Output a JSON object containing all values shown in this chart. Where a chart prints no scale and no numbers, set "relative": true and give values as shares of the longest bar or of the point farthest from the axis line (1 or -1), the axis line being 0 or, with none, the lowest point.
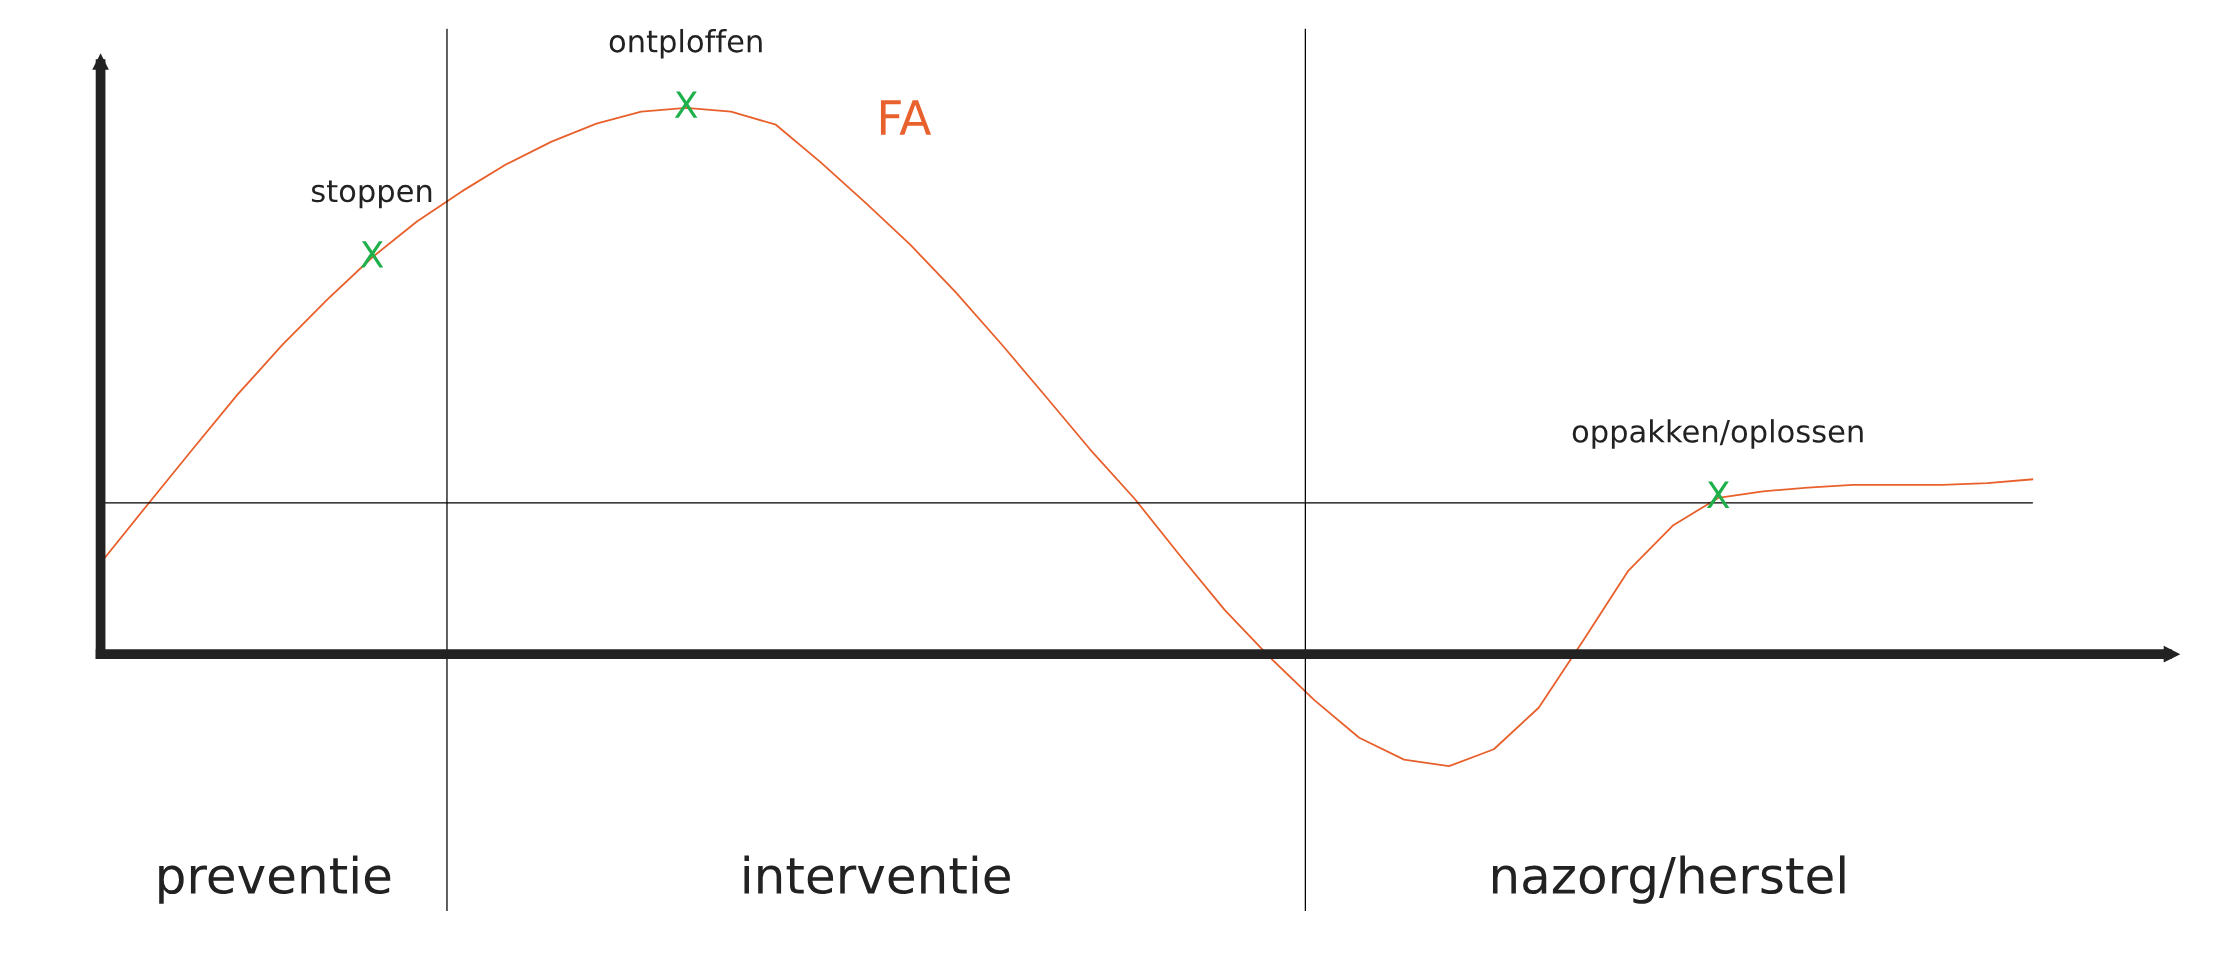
{
  "chart_data": {
    "type": "line",
    "relative": true,
    "tick_labels": false,
    "categories": [
      null,
      null,
      null,
      null,
      null,
      null,
      null,
      null,
      null,
      null,
      null,
      null,
      null,
      null,
      null,
      null,
      null,
      null,
      null,
      null,
      null,
      null,
      null,
      null,
      null,
      null,
      null,
      null,
      null,
      null,
      null,
      null,
      null,
      null,
      null,
      null,
      null,
      null,
      null,
      null,
      null,
      null,
      null,
      null
    ],
    "series": [
      {
        "name": "FA",
        "color": "#e8602c",
        "values": [
          0.172,
          0.274,
          0.375,
          0.475,
          0.566,
          0.649,
          0.726,
          0.792,
          0.847,
          0.897,
          0.938,
          0.971,
          0.993,
          1.0,
          0.993,
          0.969,
          0.9,
          0.826,
          0.749,
          0.663,
          0.57,
          0.473,
          0.375,
          0.284,
          0.181,
          0.081,
          -0.005,
          -0.084,
          -0.153,
          -0.193,
          -0.205,
          -0.174,
          -0.098,
          0.026,
          0.153,
          0.236,
          0.286,
          0.298,
          0.305,
          0.31,
          0.31,
          0.31,
          0.313,
          0.32
        ]
      }
    ],
    "annotations": [
      {
        "text": "X",
        "y": 0.726
      },
      {
        "text": "stoppen",
        "y": 0.726
      },
      {
        "text": "X",
        "y": 1.0
      },
      {
        "text": "ontploffen",
        "y": 1.0
      },
      {
        "text": "X",
        "y": 0.286
      },
      {
        "text": "oppakken/oplossen",
        "y": 0.286
      },
      "preventie",
      "interventie",
      "nazorg/herstel"
    ],
    "ref_lines": [
      {
        "axis": "y",
        "value": 0.277,
        "color": "#000000"
      }
    ]
  }
}
